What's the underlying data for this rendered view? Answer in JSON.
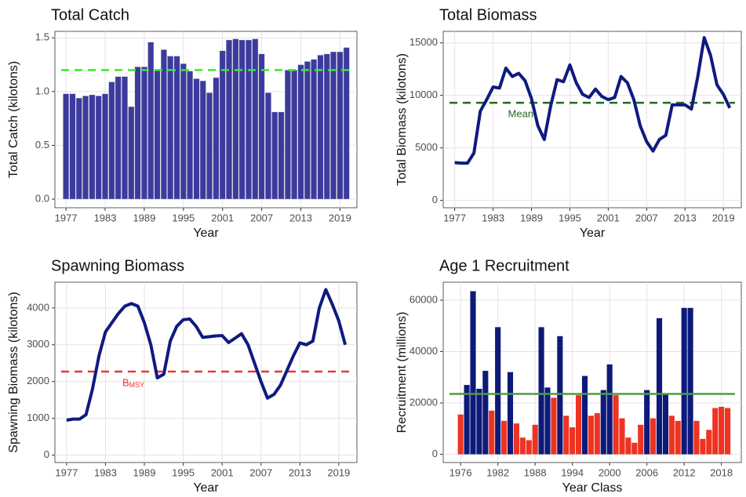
{
  "chart_data": [
    {
      "type": "bar",
      "title": "Total Catch",
      "xlabel": "Year",
      "ylabel": "Total Catch (kilotons)",
      "x": [
        1977,
        1978,
        1979,
        1980,
        1981,
        1982,
        1983,
        1984,
        1985,
        1986,
        1987,
        1988,
        1989,
        1990,
        1991,
        1992,
        1993,
        1994,
        1995,
        1996,
        1997,
        1998,
        1999,
        2000,
        2001,
        2002,
        2003,
        2004,
        2005,
        2006,
        2007,
        2008,
        2009,
        2010,
        2011,
        2012,
        2013,
        2014,
        2015,
        2016,
        2017,
        2018,
        2019,
        2020
      ],
      "values": [
        0.98,
        0.98,
        0.94,
        0.96,
        0.97,
        0.96,
        0.98,
        1.09,
        1.14,
        1.14,
        0.86,
        1.23,
        1.23,
        1.46,
        1.2,
        1.39,
        1.33,
        1.33,
        1.26,
        1.19,
        1.12,
        1.1,
        0.99,
        1.13,
        1.38,
        1.48,
        1.49,
        1.48,
        1.48,
        1.49,
        1.35,
        0.99,
        0.81,
        0.81,
        1.2,
        1.2,
        1.25,
        1.28,
        1.3,
        1.34,
        1.35,
        1.37,
        1.37,
        1.41
      ],
      "color": "#3b3b9e",
      "xlim": [
        1975.3,
        2021.6
      ],
      "xticks": [
        1977,
        1983,
        1989,
        1995,
        2001,
        2007,
        2013,
        2019
      ],
      "ylim": [
        -0.08,
        1.56
      ],
      "yticks": [
        {
          "value": 0,
          "label": "0.0"
        },
        0.5,
        {
          "value": 1,
          "label": "1.0"
        },
        1.5
      ],
      "reference_line": {
        "value": 1.2,
        "color": "#33ee22"
      },
      "grid": true
    },
    {
      "type": "line",
      "title": "Total Biomass",
      "xlabel": "Year",
      "ylabel": "Total Biomass (kilotons)",
      "x": [
        1977,
        1978,
        1979,
        1980,
        1981,
        1982,
        1983,
        1984,
        1985,
        1986,
        1987,
        1988,
        1989,
        1990,
        1991,
        1992,
        1993,
        1994,
        1995,
        1996,
        1997,
        1998,
        1999,
        2000,
        2001,
        2002,
        2003,
        2004,
        2005,
        2006,
        2007,
        2008,
        2009,
        2010,
        2011,
        2012,
        2013,
        2014,
        2015,
        2016,
        2017,
        2018,
        2019,
        2020
      ],
      "values": [
        3600,
        3550,
        3550,
        4500,
        8500,
        9600,
        10800,
        10700,
        12600,
        11800,
        12100,
        11400,
        9700,
        7100,
        5800,
        9000,
        11500,
        11300,
        12900,
        11200,
        10100,
        9800,
        10600,
        9900,
        9600,
        9800,
        11800,
        11200,
        9600,
        7100,
        5600,
        4700,
        5800,
        6200,
        9100,
        9100,
        9100,
        8700,
        11800,
        15500,
        13800,
        11000,
        10100,
        8800
      ],
      "color": "#0f1a80",
      "xlim": [
        1975.2,
        2021.8
      ],
      "xticks": [
        1977,
        1983,
        1989,
        1995,
        2001,
        2007,
        2013,
        2019
      ],
      "ylim": [
        -700,
        16100
      ],
      "yticks": [
        0,
        5000,
        10000,
        15000
      ],
      "reference_line": {
        "value": 9300,
        "color": "#1e6b1e",
        "label": "Mean"
      },
      "grid": true
    },
    {
      "type": "line",
      "title": "Spawning Biomass",
      "xlabel": "Year",
      "ylabel": "Spawning Biomass (kilotons)",
      "x": [
        1977,
        1978,
        1979,
        1980,
        1981,
        1982,
        1983,
        1984,
        1985,
        1986,
        1987,
        1988,
        1989,
        1990,
        1991,
        1992,
        1993,
        1994,
        1995,
        1996,
        1997,
        1998,
        1999,
        2000,
        2001,
        2002,
        2003,
        2004,
        2005,
        2006,
        2007,
        2008,
        2009,
        2010,
        2011,
        2012,
        2013,
        2014,
        2015,
        2016,
        2017,
        2018,
        2019,
        2020
      ],
      "values": [
        950,
        980,
        980,
        1100,
        1800,
        2700,
        3350,
        3600,
        3850,
        4050,
        4120,
        4050,
        3600,
        3000,
        2100,
        2200,
        3100,
        3500,
        3680,
        3700,
        3500,
        3200,
        3220,
        3240,
        3250,
        3060,
        3180,
        3300,
        3000,
        2500,
        2000,
        1550,
        1650,
        1900,
        2300,
        2700,
        3050,
        3000,
        3100,
        4000,
        4500,
        4100,
        3650,
        3000
      ],
      "color": "#0f1a80",
      "xlim": [
        1975.2,
        2021.8
      ],
      "xticks": [
        1977,
        1983,
        1989,
        1995,
        2001,
        2007,
        2013,
        2019
      ],
      "ylim": [
        -200,
        4700
      ],
      "yticks": [
        0,
        1000,
        2000,
        3000,
        4000
      ],
      "reference_line": {
        "value": 2270,
        "color": "#ee3333",
        "label": "B",
        "label_sub": "MSY"
      },
      "grid": true
    },
    {
      "type": "bar",
      "title": "Age 1 Recruitment",
      "xlabel": "Year Class",
      "ylabel": "Recruitment (millions)",
      "x": [
        1976,
        1977,
        1978,
        1979,
        1980,
        1981,
        1982,
        1983,
        1984,
        1985,
        1986,
        1987,
        1988,
        1989,
        1990,
        1991,
        1992,
        1993,
        1994,
        1995,
        1996,
        1997,
        1998,
        1999,
        2000,
        2001,
        2002,
        2003,
        2004,
        2005,
        2006,
        2007,
        2008,
        2009,
        2010,
        2011,
        2012,
        2013,
        2014,
        2015,
        2016,
        2017,
        2018,
        2019
      ],
      "values": [
        15500,
        27000,
        63500,
        25500,
        32500,
        17000,
        49500,
        13000,
        32000,
        12000,
        6500,
        5500,
        11500,
        49500,
        26000,
        22000,
        46000,
        15000,
        10500,
        23000,
        30500,
        15000,
        16000,
        25000,
        35000,
        23000,
        14000,
        6500,
        4500,
        11500,
        25000,
        14000,
        53000,
        23500,
        15000,
        13000,
        57000,
        57000,
        13000,
        6000,
        9500,
        18000,
        18500,
        18000
      ],
      "colors": [
        "#ee3322",
        "#0d1a7a",
        "#0d1a7a",
        "#0d1a7a",
        "#0d1a7a",
        "#ee3322",
        "#0d1a7a",
        "#ee3322",
        "#0d1a7a",
        "#ee3322",
        "#ee3322",
        "#ee3322",
        "#ee3322",
        "#0d1a7a",
        "#0d1a7a",
        "#ee3322",
        "#0d1a7a",
        "#ee3322",
        "#ee3322",
        "#ee3322",
        "#0d1a7a",
        "#ee3322",
        "#ee3322",
        "#0d1a7a",
        "#0d1a7a",
        "#ee3322",
        "#ee3322",
        "#ee3322",
        "#ee3322",
        "#ee3322",
        "#0d1a7a",
        "#ee3322",
        "#0d1a7a",
        "#0d1a7a",
        "#ee3322",
        "#ee3322",
        "#0d1a7a",
        "#0d1a7a",
        "#ee3322",
        "#ee3322",
        "#ee3322",
        "#ee3322",
        "#ee3322",
        "#ee3322"
      ],
      "xlim": [
        1973.2,
        2021.2
      ],
      "xticks": [
        1976,
        1982,
        1988,
        1994,
        2000,
        2006,
        2012,
        2018
      ],
      "ylim": [
        -3200,
        67000
      ],
      "yticks": [
        0,
        20000,
        40000,
        60000
      ],
      "reference_line": {
        "value": 23500,
        "color": "#559944",
        "style": "solid"
      },
      "grid": true
    }
  ]
}
